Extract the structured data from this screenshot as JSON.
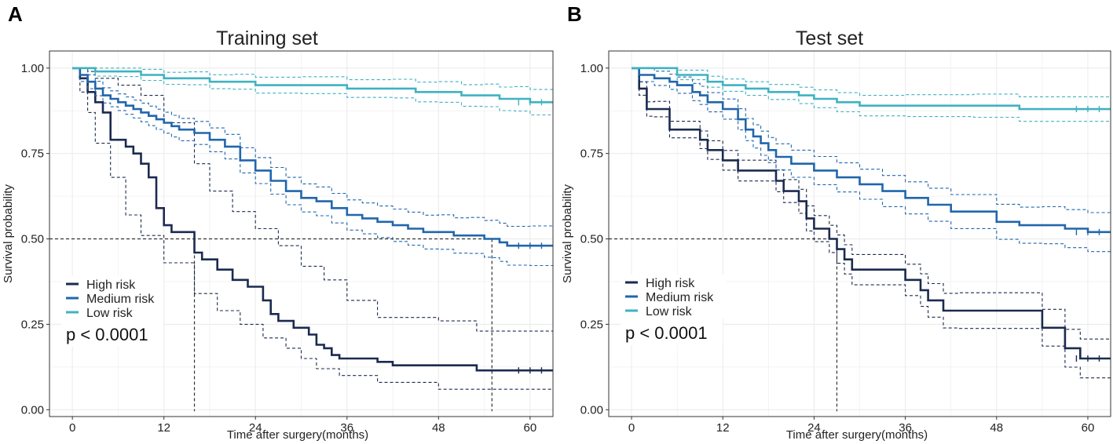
{
  "figure": {
    "colors": {
      "high": "#1b2a4f",
      "medium": "#2166ac",
      "low": "#3fb2c2",
      "grid": "#ececec",
      "axis": "#333333",
      "text": "#222222",
      "median_line": "#333333"
    }
  },
  "chart_data": [
    {
      "type": "line",
      "subtype": "kaplan-meier",
      "panel_label": "A",
      "title": "Training set",
      "xlabel": "Time after surgery(months)",
      "ylabel": "Survival probability",
      "xlim": [
        -3,
        63
      ],
      "ylim": [
        -0.02,
        1.05
      ],
      "xticks": [
        0,
        12,
        24,
        36,
        48,
        60
      ],
      "yticks": [
        0.0,
        0.25,
        0.5,
        0.75,
        1.0
      ],
      "ytick_labels": [
        "0.00",
        "0.25",
        "0.50",
        "0.75",
        "1.00"
      ],
      "legend_location": "lower-left",
      "pvalue_text": "p < 0.0001",
      "median_line": {
        "y": 0.5,
        "medians_x": [
          16,
          55
        ]
      },
      "series": [
        {
          "name": "High risk",
          "color_key": "high",
          "x": [
            0,
            1,
            2,
            3,
            4,
            5,
            7,
            8,
            9,
            10,
            11,
            12,
            13,
            16,
            17,
            19,
            21,
            23,
            25,
            26,
            27,
            29,
            31,
            32,
            33,
            34,
            35,
            36,
            40,
            42,
            48,
            53,
            63
          ],
          "y": [
            1.0,
            0.97,
            0.93,
            0.9,
            0.87,
            0.79,
            0.77,
            0.75,
            0.72,
            0.68,
            0.59,
            0.54,
            0.52,
            0.46,
            0.44,
            0.41,
            0.38,
            0.36,
            0.32,
            0.28,
            0.26,
            0.24,
            0.22,
            0.19,
            0.18,
            0.16,
            0.15,
            0.15,
            0.14,
            0.13,
            0.13,
            0.115,
            0.115
          ],
          "ci_upper": {
            "x": [
              0,
              1,
              2,
              3,
              6,
              9,
              12,
              16,
              18,
              21,
              24,
              27,
              30,
              33,
              36,
              40,
              48,
              53,
              63
            ],
            "y": [
              1.0,
              1.0,
              0.99,
              0.97,
              0.95,
              0.92,
              0.84,
              0.72,
              0.64,
              0.58,
              0.53,
              0.48,
              0.42,
              0.38,
              0.32,
              0.27,
              0.26,
              0.23,
              0.23
            ]
          },
          "ci_lower": {
            "x": [
              0,
              1,
              2,
              3,
              5,
              7,
              9,
              12,
              16,
              19,
              22,
              25,
              28,
              30,
              32,
              35,
              40,
              48,
              63
            ],
            "y": [
              1.0,
              0.93,
              0.87,
              0.78,
              0.68,
              0.57,
              0.51,
              0.43,
              0.34,
              0.29,
              0.25,
              0.21,
              0.18,
              0.15,
              0.12,
              0.1,
              0.08,
              0.06,
              0.06
            ]
          }
        },
        {
          "name": "Medium risk",
          "color_key": "medium",
          "x": [
            0,
            1,
            2,
            3,
            4,
            5,
            6,
            7,
            8,
            9,
            10,
            11,
            12,
            13,
            14,
            16,
            18,
            20,
            22,
            24,
            26,
            28,
            30,
            32,
            34,
            36,
            38,
            40,
            42,
            44,
            46,
            48,
            50,
            52,
            54,
            55,
            56,
            57,
            60,
            63
          ],
          "y": [
            1.0,
            0.98,
            0.96,
            0.94,
            0.92,
            0.91,
            0.9,
            0.89,
            0.88,
            0.87,
            0.86,
            0.85,
            0.84,
            0.83,
            0.82,
            0.81,
            0.79,
            0.77,
            0.73,
            0.7,
            0.67,
            0.64,
            0.62,
            0.61,
            0.59,
            0.57,
            0.56,
            0.55,
            0.54,
            0.53,
            0.52,
            0.52,
            0.51,
            0.51,
            0.5,
            0.5,
            0.49,
            0.48,
            0.48,
            0.48
          ]
        },
        {
          "name": "Low risk",
          "color_key": "low",
          "x": [
            0,
            3,
            6,
            9,
            12,
            15,
            18,
            21,
            24,
            30,
            36,
            42,
            45,
            48,
            51,
            54,
            56,
            58,
            60,
            63
          ],
          "y": [
            1.0,
            0.99,
            0.99,
            0.98,
            0.97,
            0.97,
            0.96,
            0.96,
            0.95,
            0.95,
            0.94,
            0.94,
            0.93,
            0.93,
            0.92,
            0.92,
            0.91,
            0.91,
            0.9,
            0.9
          ]
        }
      ]
    },
    {
      "type": "line",
      "subtype": "kaplan-meier",
      "panel_label": "B",
      "title": "Test set",
      "xlabel": "Time after surgery(months)",
      "ylabel": "Survival probability",
      "xlim": [
        -3,
        63
      ],
      "ylim": [
        -0.02,
        1.05
      ],
      "xticks": [
        0,
        12,
        24,
        36,
        48,
        60
      ],
      "yticks": [
        0.0,
        0.25,
        0.5,
        0.75,
        1.0
      ],
      "ytick_labels": [
        "0.00",
        "0.25",
        "0.50",
        "0.75",
        "1.00"
      ],
      "legend_location": "lower-left",
      "pvalue_text": "p < 0.0001",
      "median_line": {
        "y": 0.5,
        "medians_x": [
          27
        ]
      },
      "series": [
        {
          "name": "High risk",
          "color_key": "high",
          "x": [
            0,
            1,
            2,
            3,
            5,
            9,
            10,
            12,
            14,
            19,
            20,
            22,
            23,
            24,
            26,
            27,
            28,
            29,
            36,
            38,
            39,
            41,
            43,
            54,
            57,
            59,
            63
          ],
          "y": [
            1.0,
            0.94,
            0.88,
            0.88,
            0.82,
            0.79,
            0.76,
            0.73,
            0.7,
            0.67,
            0.64,
            0.61,
            0.56,
            0.53,
            0.5,
            0.47,
            0.44,
            0.41,
            0.38,
            0.35,
            0.32,
            0.29,
            0.29,
            0.24,
            0.18,
            0.15,
            0.15
          ]
        },
        {
          "name": "Medium risk",
          "color_key": "medium",
          "x": [
            0,
            1,
            3,
            5,
            6,
            8,
            9,
            10,
            12,
            14,
            15,
            16,
            17,
            18,
            19,
            21,
            24,
            27,
            30,
            33,
            36,
            39,
            42,
            48,
            51,
            54,
            57,
            60,
            63
          ],
          "y": [
            1.0,
            0.98,
            0.97,
            0.96,
            0.95,
            0.93,
            0.92,
            0.9,
            0.88,
            0.85,
            0.82,
            0.8,
            0.78,
            0.76,
            0.74,
            0.72,
            0.7,
            0.68,
            0.66,
            0.64,
            0.62,
            0.6,
            0.58,
            0.55,
            0.54,
            0.54,
            0.53,
            0.52,
            0.52
          ]
        },
        {
          "name": "Low risk",
          "color_key": "low",
          "x": [
            0,
            6,
            10,
            12,
            15,
            18,
            22,
            24,
            27,
            30,
            36,
            45,
            51,
            63
          ],
          "y": [
            1.0,
            0.98,
            0.96,
            0.95,
            0.94,
            0.93,
            0.92,
            0.91,
            0.9,
            0.89,
            0.89,
            0.89,
            0.88,
            0.88
          ]
        }
      ]
    }
  ]
}
